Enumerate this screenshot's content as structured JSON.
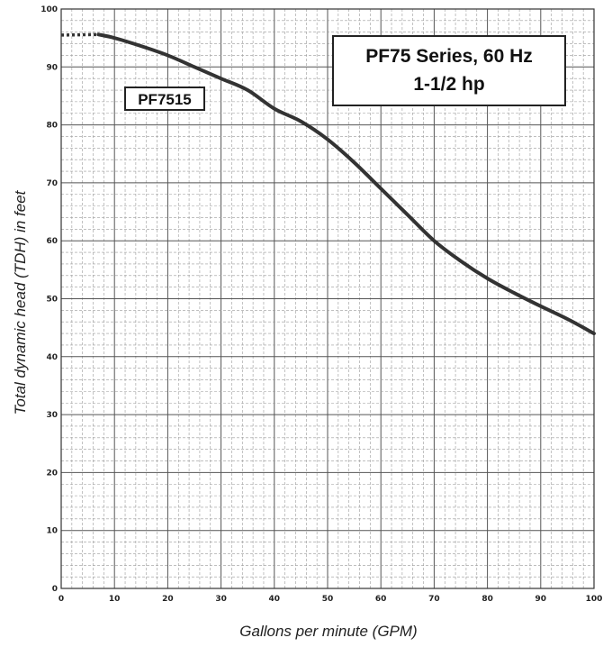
{
  "chart_data": {
    "type": "line",
    "title": "PF75 Series, 60 Hz",
    "subtitle": "1-1/2 hp",
    "xlabel": "Gallons per minute (GPM)",
    "ylabel": "Total dynamic head (TDH) in feet",
    "xlim": [
      0,
      100
    ],
    "ylim": [
      0,
      100
    ],
    "x_ticks": [
      "0",
      "10",
      "20",
      "30",
      "40",
      "50",
      "60",
      "70",
      "80",
      "90",
      "100"
    ],
    "y_ticks": [
      "0",
      "10",
      "20",
      "30",
      "40",
      "50",
      "60",
      "70",
      "80",
      "90",
      "100"
    ],
    "grid": true,
    "series": [
      {
        "name": "PF7515",
        "color": "#333333",
        "dotted_segment": {
          "x": [
            0,
            7
          ],
          "y": [
            95.5,
            95.6
          ]
        },
        "x": [
          7,
          10,
          15,
          20,
          25,
          30,
          35,
          40,
          45,
          50,
          55,
          60,
          65,
          70,
          75,
          80,
          85,
          90,
          95,
          100
        ],
        "y": [
          95.6,
          95.0,
          93.6,
          92.0,
          90.0,
          88.0,
          86.0,
          82.8,
          80.6,
          77.5,
          73.5,
          69.0,
          64.5,
          60.0,
          56.5,
          53.5,
          51.0,
          48.7,
          46.5,
          44.0
        ]
      }
    ]
  }
}
